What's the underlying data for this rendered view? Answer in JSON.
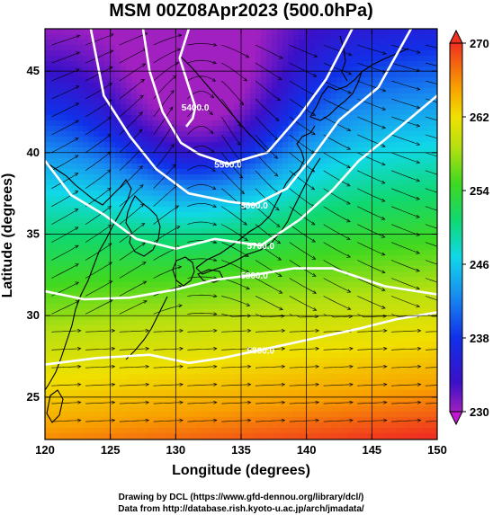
{
  "chart_data": {
    "type": "heatmap",
    "title": "MSM 00Z08Apr2023 (500.0hPa)",
    "xlabel": "Longitude (degrees)",
    "ylabel": "Latitude  (degrees)",
    "xlim": [
      120,
      150
    ],
    "ylim": [
      22.4,
      47.6
    ],
    "x_ticks": [
      "120",
      "125",
      "130",
      "135",
      "140",
      "145",
      "150"
    ],
    "y_ticks": [
      "25",
      "30",
      "35",
      "40",
      "45"
    ],
    "x_tick_values": [
      120,
      125,
      130,
      135,
      140,
      145,
      150
    ],
    "y_tick_values": [
      25,
      30,
      35,
      40,
      45
    ],
    "grid": true,
    "colorbar": {
      "min": 230,
      "max": 270,
      "ticks": [
        "230",
        "238",
        "246",
        "254",
        "262",
        "270"
      ],
      "tick_values": [
        230,
        238,
        246,
        254,
        262,
        270
      ]
    },
    "contours": [
      {
        "label": "5400.0",
        "value": 5400,
        "points": [
          [
            131.0,
            47.6
          ],
          [
            130.3,
            45.8
          ],
          [
            130.9,
            44.3
          ],
          [
            131.5,
            42.8
          ],
          [
            131.3,
            42.1
          ],
          [
            130.8,
            41.6
          ]
        ]
      },
      {
        "label": "5500.0",
        "value": 5500,
        "points": [
          [
            127.5,
            47.6
          ],
          [
            128.0,
            45.0
          ],
          [
            129.0,
            42.5
          ],
          [
            130.4,
            40.6
          ],
          [
            131.8,
            39.9
          ],
          [
            134.0,
            39.3
          ],
          [
            137.0,
            40.0
          ],
          [
            139.5,
            42.3
          ],
          [
            141.5,
            44.5
          ],
          [
            143.5,
            47.6
          ]
        ]
      },
      {
        "label": "5600.0",
        "value": 5600,
        "points": [
          [
            123.5,
            47.6
          ],
          [
            124.5,
            43.5
          ],
          [
            126.5,
            41.0
          ],
          [
            128.5,
            39.0
          ],
          [
            131.0,
            37.5
          ],
          [
            134.0,
            37.0
          ],
          [
            136.0,
            36.8
          ],
          [
            138.5,
            37.8
          ],
          [
            140.5,
            39.8
          ],
          [
            142.5,
            42.0
          ],
          [
            145.5,
            44.0
          ],
          [
            148.0,
            47.6
          ]
        ]
      },
      {
        "label": "5700.0",
        "value": 5700,
        "points": [
          [
            120.0,
            39.5
          ],
          [
            122.0,
            37.4
          ],
          [
            124.5,
            36.2
          ],
          [
            127.0,
            34.7
          ],
          [
            130.0,
            34.1
          ],
          [
            133.0,
            34.7
          ],
          [
            136.5,
            34.3
          ],
          [
            139.5,
            35.9
          ],
          [
            142.0,
            37.7
          ],
          [
            144.0,
            39.5
          ],
          [
            146.0,
            40.8
          ],
          [
            150.0,
            43.5
          ]
        ]
      },
      {
        "label": "5800.0",
        "value": 5800,
        "points": [
          [
            120.0,
            31.5
          ],
          [
            123.0,
            31.0
          ],
          [
            126.5,
            31.1
          ],
          [
            130.0,
            31.6
          ],
          [
            133.0,
            32.2
          ],
          [
            136.0,
            32.5
          ],
          [
            139.0,
            32.9
          ],
          [
            142.0,
            32.9
          ],
          [
            146.0,
            31.8
          ],
          [
            150.0,
            31.3
          ]
        ]
      },
      {
        "label": "5800.0",
        "value": 5800,
        "points": [
          [
            120.0,
            27.0
          ],
          [
            124.0,
            27.4
          ],
          [
            128.0,
            27.6
          ],
          [
            131.0,
            27.1
          ],
          [
            133.6,
            27.4
          ],
          [
            136.5,
            27.9
          ],
          [
            140.0,
            28.5
          ],
          [
            144.0,
            29.2
          ],
          [
            147.0,
            29.8
          ],
          [
            150.0,
            30.2
          ]
        ]
      }
    ]
  },
  "credits": {
    "line1": "Drawing by DCL (https://www.gfd-dennou.org/library/dcl/)",
    "line2": "Data from http://database.rish.kyoto-u.ac.jp/arch/jmadata/"
  }
}
